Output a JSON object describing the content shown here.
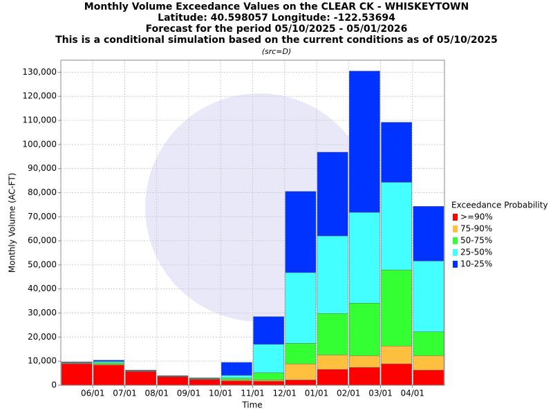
{
  "chart_data": {
    "type": "stacked_bar",
    "title": [
      "Monthly Volume Exceedance Values on the CLEAR CK - WHISKEYTOWN",
      "Latitude: 40.598057 Longitude: -122.53694",
      "Forecast for the period 05/10/2025 - 05/01/2026",
      "This is a conditional simulation based on the current conditions as of 05/10/2025"
    ],
    "subtitle": "(src=D)",
    "x_label": "Time",
    "y_label": "Monthly Volume (AC-FT)",
    "xticks": [
      "06/01",
      "07/01",
      "08/01",
      "09/01",
      "10/01",
      "11/01",
      "12/01",
      "01/01",
      "02/01",
      "03/01",
      "04/01"
    ],
    "ylim": [
      0,
      135000
    ],
    "yticks": [
      0,
      {
        "value": 10000,
        "label": "10,000"
      },
      {
        "value": 20000,
        "label": "20,000"
      },
      {
        "value": 30000,
        "label": "30,000"
      },
      {
        "value": 40000,
        "label": "40,000"
      },
      {
        "value": 50000,
        "label": "50,000"
      },
      {
        "value": 60000,
        "label": "60,000"
      },
      {
        "value": 70000,
        "label": "70,000"
      },
      {
        "value": 80000,
        "label": "80,000"
      },
      {
        "value": 90000,
        "label": "90,000"
      },
      {
        "value": 100000,
        "label": "100,000"
      },
      {
        "value": 110000,
        "label": "110,000"
      },
      {
        "value": 120000,
        "label": "120,000"
      },
      {
        "value": 130000,
        "label": "130,000"
      }
    ],
    "grid": true,
    "legend_title": "Exceedance Probability",
    "series": [
      {
        "name": ">=90%",
        "color": "#ff0000",
        "values": [
          8900,
          8400,
          5700,
          3500,
          2400,
          1800,
          1700,
          2200,
          6600,
          7400,
          8900,
          6300
        ]
      },
      {
        "name": "75-90%",
        "color": "#ffc040",
        "values": [
          200,
          300,
          150,
          125,
          150,
          400,
          500,
          6700,
          6000,
          4900,
          7400,
          6000
        ]
      },
      {
        "name": "50-75%",
        "color": "#33ff33",
        "values": [
          200,
          600,
          150,
          125,
          200,
          800,
          3000,
          8500,
          17200,
          21800,
          31600,
          9900
        ]
      },
      {
        "name": "25-50%",
        "color": "#44ffff",
        "values": [
          200,
          600,
          150,
          125,
          200,
          1100,
          11800,
          29400,
          32200,
          37700,
          36400,
          29400
        ]
      },
      {
        "name": "10-25%",
        "color": "#0033ff",
        "values": [
          200,
          500,
          150,
          125,
          150,
          5400,
          11500,
          33700,
          34800,
          58700,
          24900,
          22700
        ]
      }
    ]
  }
}
